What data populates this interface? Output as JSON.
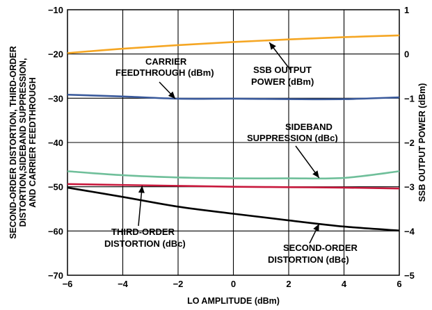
{
  "chart_data": {
    "type": "line",
    "xlabel": "LO AMPLITUDE (dBm)",
    "ylabel_left": [
      "SECOND-ORDER DISTORTION, THIRD-ORDER",
      "DISTORTION,SIDEBAND SUPPRESSION,",
      "AND CARRIER FEEDTHROUGH"
    ],
    "ylabel_right": "SSB OUTPUT POWER (dBm)",
    "xlim": [
      -6,
      6
    ],
    "ylim_left": [
      -70,
      -10
    ],
    "ylim_right": [
      -5,
      1
    ],
    "x_ticks": [
      "−6",
      "−4",
      "−2",
      "0",
      "2",
      "4",
      "6"
    ],
    "y_ticks_left": [
      "−10",
      "−20",
      "−30",
      "−40",
      "−50",
      "−60",
      "−70"
    ],
    "y_ticks_right": [
      "1",
      "0",
      "−1",
      "−2",
      "−3",
      "−4",
      "−5"
    ],
    "grid": true,
    "series": [
      {
        "name": "SSB OUTPUT POWER (dBm)",
        "axis": "right",
        "color": "#f5a623",
        "x": [
          -6,
          -4,
          -2,
          0,
          2,
          4,
          6
        ],
        "values": [
          0.02,
          0.12,
          0.2,
          0.27,
          0.33,
          0.38,
          0.42
        ]
      },
      {
        "name": "CARRIER FEEDTHROUGH (dBm)",
        "axis": "left",
        "color": "#3a5a9c",
        "x": [
          -6,
          -4,
          -2,
          0,
          2,
          4,
          6
        ],
        "values": [
          -29.2,
          -29.6,
          -30.1,
          -30.1,
          -30.2,
          -30.2,
          -29.8
        ]
      },
      {
        "name": "SIDEBAND SUPPRESSION (dBc)",
        "axis": "left",
        "color": "#6fbf9a",
        "x": [
          -6,
          -4,
          -2,
          0,
          2,
          4,
          6
        ],
        "values": [
          -46.5,
          -47.4,
          -47.9,
          -48.1,
          -48.1,
          -48.0,
          -46.5
        ]
      },
      {
        "name": "THIRD-ORDER DISTORTION (dBc)",
        "axis": "left",
        "color": "#c8183c",
        "x": [
          -6,
          -4,
          -2,
          0,
          2,
          4,
          6
        ],
        "values": [
          -49.4,
          -49.6,
          -49.8,
          -50.0,
          -50.1,
          -50.2,
          -50.4
        ]
      },
      {
        "name": "SECOND-ORDER DISTORTION (dBc)",
        "axis": "left",
        "color": "#000000",
        "x": [
          -6,
          -4,
          -2,
          0,
          2,
          4,
          6
        ],
        "values": [
          -50.2,
          -52.3,
          -54.5,
          -56.1,
          -57.6,
          -59.0,
          -59.9
        ]
      }
    ],
    "annotations": [
      {
        "lines": [
          "CARRIER",
          "FEEDTHROUGH (dBm)"
        ],
        "arrow_to": {
          "x": -2.1,
          "y": -30.1
        }
      },
      {
        "lines": [
          "SSB OUTPUT",
          "POWER (dBm)"
        ],
        "arrow_to": {
          "x": 1.3,
          "y": -17.4
        }
      },
      {
        "lines": [
          "SIDEBAND",
          "SUPPRESSION (dBc)"
        ],
        "arrow_to": {
          "x": 3.1,
          "y": -48.0
        }
      },
      {
        "lines": [
          "THIRD-ORDER",
          "DISTORTION (dBc)"
        ],
        "arrow_to": {
          "x": -3.3,
          "y": -49.8
        }
      },
      {
        "lines": [
          "SECOND-ORDER",
          "DISTORTION (dBc)"
        ],
        "arrow_to": {
          "x": 3.1,
          "y": -58.4
        }
      }
    ]
  }
}
